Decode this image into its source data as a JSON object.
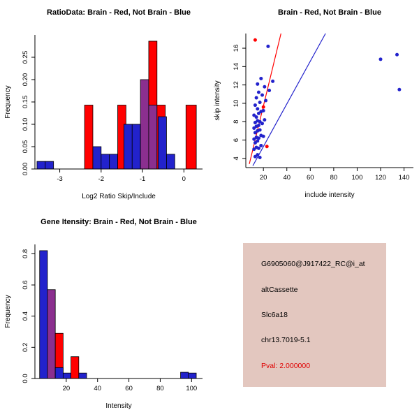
{
  "colors": {
    "red": "#ff0000",
    "blue": "#2222cc",
    "purple": "#8b2f8f",
    "info_bg": "#e3c7bf",
    "pval_red": "#e00000",
    "axis": "#000000"
  },
  "chart_data": [
    {
      "type": "bar",
      "subtype": "overlaid-histogram",
      "title": "RatioData: Brain - Red, Not Brain - Blue",
      "xlabel": "Log2 Ratio Skip/Include",
      "ylabel": "Frequency",
      "xlim": [
        -3.6,
        0.45
      ],
      "ylim": [
        0,
        0.3
      ],
      "xticks": [
        -3,
        -2,
        -1,
        0
      ],
      "yticks": [
        0,
        0.05,
        0.1,
        0.15,
        0.2,
        0.25
      ],
      "ytick_labels": [
        "0.00",
        "0.05",
        "0.10",
        "0.15",
        "0.20",
        "0.25"
      ],
      "legend_note": "Brain = red, Not Brain = blue, overlap = purple",
      "bars": [
        {
          "x0": -3.55,
          "x1": -3.35,
          "h": 0.017,
          "color": "blue"
        },
        {
          "x0": -3.35,
          "x1": -3.15,
          "h": 0.017,
          "color": "blue"
        },
        {
          "x0": -2.4,
          "x1": -2.2,
          "h": 0.143,
          "color": "red"
        },
        {
          "x0": -2.2,
          "x1": -2.0,
          "h": 0.05,
          "color": "blue"
        },
        {
          "x0": -2.0,
          "x1": -1.8,
          "h": 0.033,
          "color": "blue"
        },
        {
          "x0": -1.8,
          "x1": -1.6,
          "h": 0.033,
          "color": "blue"
        },
        {
          "x0": -1.6,
          "x1": -1.4,
          "h": 0.143,
          "color": "red"
        },
        {
          "x0": -1.45,
          "x1": -1.25,
          "h": 0.1,
          "color": "blue"
        },
        {
          "x0": -1.25,
          "x1": -1.05,
          "h": 0.1,
          "color": "blue"
        },
        {
          "x0": -1.05,
          "x1": -0.85,
          "h": 0.2,
          "color": "purple"
        },
        {
          "x0": -0.85,
          "x1": -0.65,
          "h": 0.286,
          "color": "red"
        },
        {
          "x0": -0.85,
          "x1": -0.65,
          "h": 0.143,
          "color": "purple"
        },
        {
          "x0": -0.65,
          "x1": -0.45,
          "h": 0.143,
          "color": "red"
        },
        {
          "x0": -0.62,
          "x1": -0.42,
          "h": 0.117,
          "color": "blue"
        },
        {
          "x0": -0.42,
          "x1": -0.22,
          "h": 0.033,
          "color": "blue"
        },
        {
          "x0": 0.05,
          "x1": 0.3,
          "h": 0.143,
          "color": "red"
        }
      ]
    },
    {
      "type": "scatter",
      "title": "Brain - Red, Not Brain - Blue",
      "xlabel": "include intensity",
      "ylabel": "skip intensity",
      "xlim": [
        5,
        148
      ],
      "ylim": [
        3,
        17.6
      ],
      "xticks": [
        20,
        40,
        60,
        80,
        100,
        120,
        140
      ],
      "yticks": [
        4,
        6,
        8,
        10,
        12,
        14,
        16
      ],
      "plot": {
        "l": 52,
        "r": 292,
        "t": 48,
        "b": 240
      },
      "lines": [
        {
          "x1": 8,
          "y1": 3.4,
          "x2": 35,
          "y2": 17.6,
          "c": "r"
        },
        {
          "x1": 11,
          "y1": 3.2,
          "x2": 73,
          "y2": 17.6,
          "c": "b"
        }
      ],
      "points": [
        [
          13,
          4.2,
          "b"
        ],
        [
          15,
          4.4,
          "b"
        ],
        [
          17,
          4.1,
          "b"
        ],
        [
          12,
          5.0,
          "b"
        ],
        [
          14,
          5.2,
          "b"
        ],
        [
          16,
          5.1,
          "b"
        ],
        [
          18,
          5.4,
          "b"
        ],
        [
          13,
          5.7,
          "b"
        ],
        [
          15,
          5.9,
          "b"
        ],
        [
          12,
          6.1,
          "b"
        ],
        [
          14,
          6.3,
          "b"
        ],
        [
          16,
          6.2,
          "b"
        ],
        [
          18,
          6.5,
          "b"
        ],
        [
          20,
          6.4,
          "b"
        ],
        [
          13,
          6.8,
          "b"
        ],
        [
          15,
          7.0,
          "b"
        ],
        [
          17,
          7.1,
          "b"
        ],
        [
          12,
          7.3,
          "b"
        ],
        [
          14,
          7.5,
          "b"
        ],
        [
          16,
          7.6,
          "b"
        ],
        [
          19,
          7.8,
          "b"
        ],
        [
          13,
          7.9,
          "b"
        ],
        [
          15,
          8.1,
          "b"
        ],
        [
          17,
          8.0,
          "b"
        ],
        [
          21,
          8.2,
          "b"
        ],
        [
          14,
          8.5,
          "b"
        ],
        [
          12,
          8.7,
          "b"
        ],
        [
          16,
          8.9,
          "b"
        ],
        [
          18,
          9.1,
          "b"
        ],
        [
          15,
          9.4,
          "b"
        ],
        [
          20,
          9.2,
          "b"
        ],
        [
          13,
          9.8,
          "b"
        ],
        [
          17,
          10.1,
          "b"
        ],
        [
          22,
          10.3,
          "b"
        ],
        [
          14,
          10.6,
          "b"
        ],
        [
          19,
          10.9,
          "b"
        ],
        [
          16,
          11.2,
          "b"
        ],
        [
          25,
          11.4,
          "b"
        ],
        [
          21,
          11.8,
          "b"
        ],
        [
          15,
          12.1,
          "b"
        ],
        [
          28,
          12.4,
          "b"
        ],
        [
          18,
          12.7,
          "b"
        ],
        [
          24,
          16.2,
          "b"
        ],
        [
          120,
          14.8,
          "b"
        ],
        [
          134,
          15.3,
          "b"
        ],
        [
          136,
          11.5,
          "b"
        ],
        [
          13,
          16.9,
          "r"
        ],
        [
          20,
          9.6,
          "r"
        ],
        [
          23,
          5.3,
          "r"
        ]
      ]
    },
    {
      "type": "bar",
      "subtype": "overlaid-histogram",
      "title": "Gene Itensity: Brain - Red, Not Brain - Blue",
      "xlabel": "Intensity",
      "ylabel": "Frequency",
      "xlim": [
        0,
        107
      ],
      "ylim": [
        0,
        0.86
      ],
      "xticks": [
        20,
        40,
        60,
        80,
        100
      ],
      "yticks": [
        0,
        0.2,
        0.4,
        0.6,
        0.8
      ],
      "ytick_labels": [
        "0.0",
        "0.2",
        "0.4",
        "0.6",
        "0.8"
      ],
      "legend_note": "Brain = red, Not Brain = blue, overlap = purple",
      "bars": [
        {
          "x0": 3,
          "x1": 8,
          "h": 0.82,
          "color": "blue"
        },
        {
          "x0": 8,
          "x1": 13,
          "h": 0.57,
          "color": "purple"
        },
        {
          "x0": 13,
          "x1": 18,
          "h": 0.29,
          "color": "red"
        },
        {
          "x0": 13,
          "x1": 18,
          "h": 0.07,
          "color": "blue"
        },
        {
          "x0": 18,
          "x1": 23,
          "h": 0.035,
          "color": "blue"
        },
        {
          "x0": 23,
          "x1": 28,
          "h": 0.14,
          "color": "red"
        },
        {
          "x0": 28,
          "x1": 33,
          "h": 0.035,
          "color": "blue"
        },
        {
          "x0": 93,
          "x1": 98,
          "h": 0.04,
          "color": "blue"
        },
        {
          "x0": 98,
          "x1": 103,
          "h": 0.035,
          "color": "blue"
        }
      ]
    }
  ],
  "info_box": {
    "lines": [
      {
        "text": "G6905060@J917422_RC@i_at",
        "pval": false
      },
      {
        "text": "altCassette",
        "pval": false
      },
      {
        "text": "Slc6a18",
        "pval": false
      },
      {
        "text": "chr13.7019-5.1",
        "pval": false
      },
      {
        "text": "Pval: 2.000000",
        "pval": true
      }
    ]
  }
}
